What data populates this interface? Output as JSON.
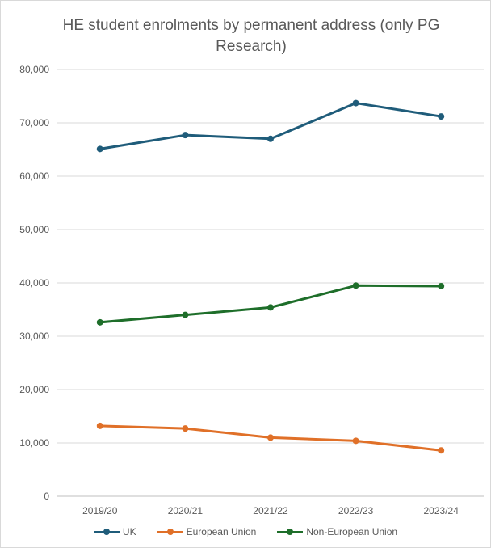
{
  "chart_data": {
    "type": "line",
    "title": "HE student enrolments by permanent address (only PG Research)",
    "categories": [
      "2019/20",
      "2020/21",
      "2021/22",
      "2022/23",
      "2023/24"
    ],
    "ylim": [
      0,
      80000
    ],
    "yticks": [
      0,
      10000,
      20000,
      30000,
      40000,
      50000,
      60000,
      70000,
      80000
    ],
    "ytick_labels": [
      "0",
      "10,000",
      "20,000",
      "30,000",
      "40,000",
      "50,000",
      "60,000",
      "70,000",
      "80,000"
    ],
    "grid": true,
    "legend": "bottom",
    "series": [
      {
        "name": "UK",
        "color": "#1f5c7a",
        "values": [
          65100,
          67700,
          67000,
          73700,
          71200
        ]
      },
      {
        "name": "European Union",
        "color": "#e07028",
        "values": [
          13200,
          12700,
          11000,
          10400,
          8600
        ]
      },
      {
        "name": "Non-European Union",
        "color": "#1e6e2a",
        "values": [
          32600,
          34000,
          35400,
          39500,
          39400
        ]
      }
    ]
  }
}
